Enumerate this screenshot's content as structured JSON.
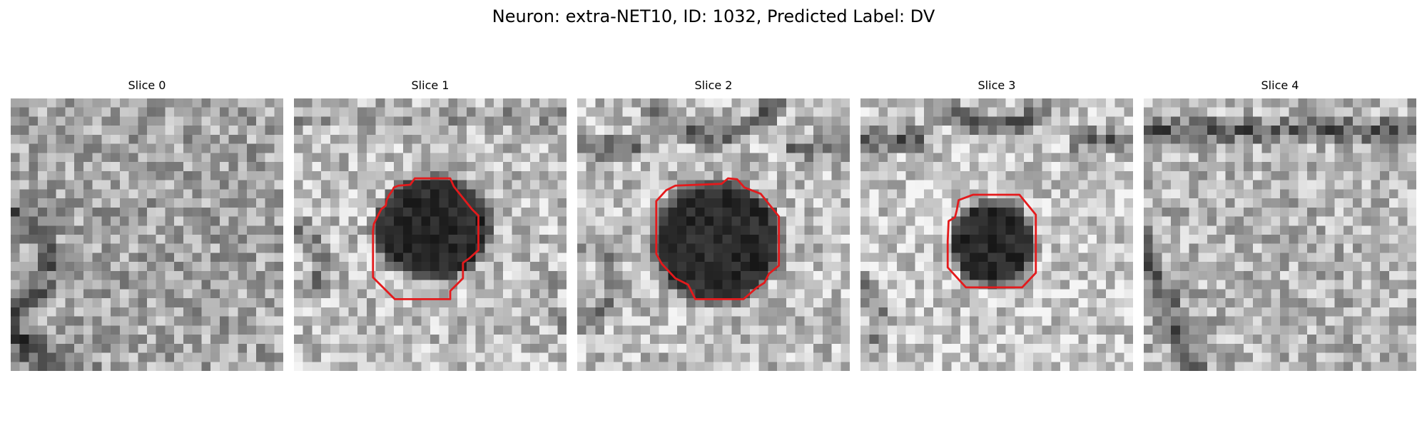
{
  "figure": {
    "title": "Neuron: extra-NET10, ID: 1032, Predicted Label: DV"
  },
  "slices": [
    {
      "title": "Slice 0",
      "has_contour": false
    },
    {
      "title": "Slice 1",
      "has_contour": true
    },
    {
      "title": "Slice 2",
      "has_contour": true
    },
    {
      "title": "Slice 3",
      "has_contour": true
    },
    {
      "title": "Slice 4",
      "has_contour": false
    }
  ],
  "colors": {
    "contour": "#e41a1c",
    "colormap": "grayscale"
  }
}
